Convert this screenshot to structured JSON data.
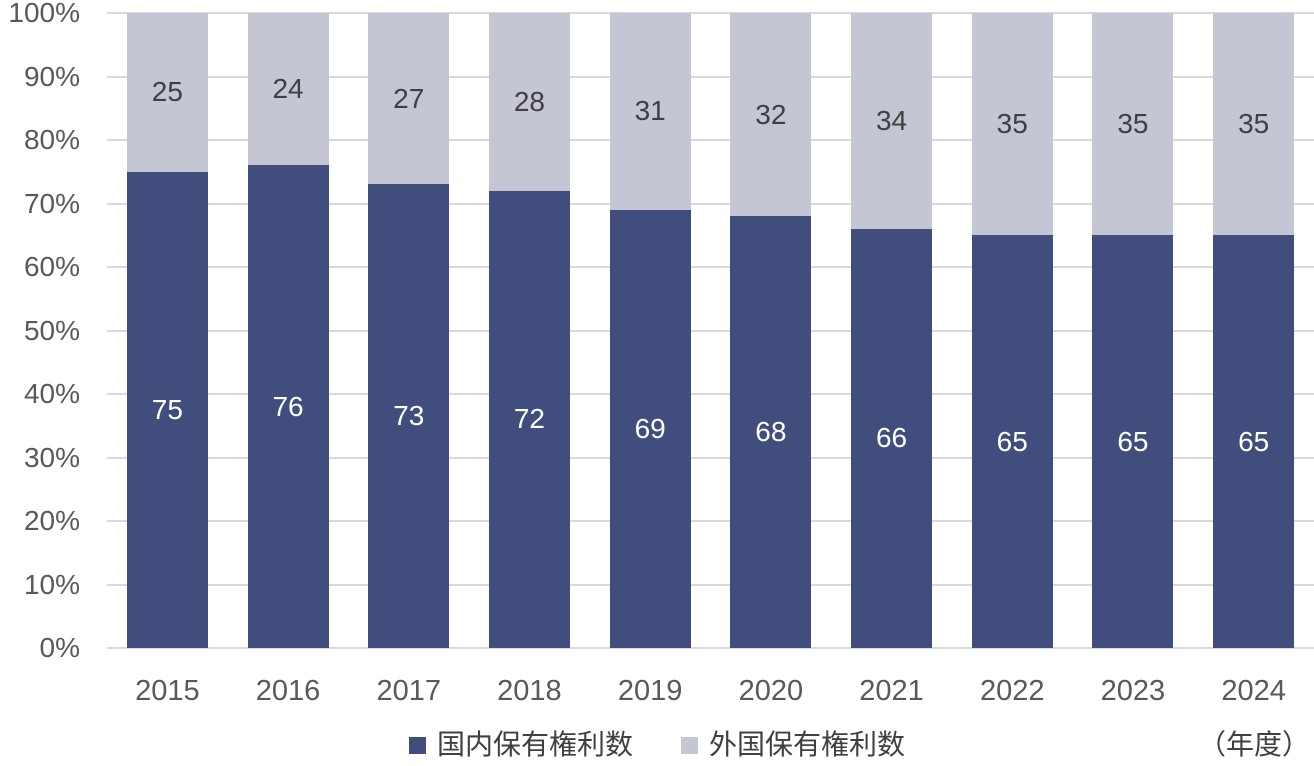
{
  "chart_data": {
    "type": "bar",
    "stacked": true,
    "percent_stacked": true,
    "title": "",
    "categories": [
      "2015",
      "2016",
      "2017",
      "2018",
      "2019",
      "2020",
      "2021",
      "2022",
      "2023",
      "2024"
    ],
    "series": [
      {
        "name": "国内保有権利数",
        "values": [
          75,
          76,
          73,
          72,
          69,
          68,
          66,
          65,
          65,
          65
        ],
        "color": "#414e7d",
        "label_color": "#ffffff"
      },
      {
        "name": "外国保有権利数",
        "values": [
          25,
          24,
          27,
          28,
          31,
          32,
          34,
          35,
          35,
          35
        ],
        "color": "#c4c6d3",
        "label_color": "#404040"
      }
    ],
    "y_ticks": [
      "0%",
      "10%",
      "20%",
      "30%",
      "40%",
      "50%",
      "60%",
      "70%",
      "80%",
      "90%",
      "100%"
    ],
    "ylim": [
      0,
      100
    ],
    "x_unit_label": "（年度）",
    "legend_position": "bottom",
    "grid": true,
    "colors": {
      "background": "#ffffff",
      "gridline": "#d9d9d9",
      "axis_text": "#595959",
      "legend_text": "#404040"
    }
  }
}
